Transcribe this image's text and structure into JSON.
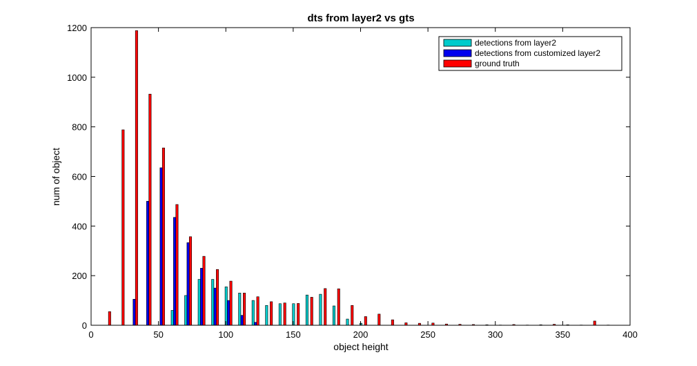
{
  "chart_data": {
    "type": "bar",
    "title": "dts from layer2 vs gts",
    "xlabel": "object height",
    "ylabel": "num of object",
    "xlim": [
      0,
      400
    ],
    "ylim": [
      0,
      1200
    ],
    "xticks": [
      0,
      50,
      100,
      150,
      200,
      250,
      300,
      350,
      400
    ],
    "yticks": [
      0,
      200,
      400,
      600,
      800,
      1000,
      1200
    ],
    "grid": false,
    "legend_position": "top-right",
    "bin_centers": [
      12,
      22,
      32,
      42,
      52,
      62,
      72,
      82,
      92,
      102,
      112,
      122,
      132,
      142,
      152,
      162,
      172,
      182,
      192,
      202,
      212,
      222,
      232,
      242,
      252,
      262,
      272,
      282,
      292,
      302,
      312,
      322,
      332,
      342,
      352,
      362,
      372,
      382,
      392
    ],
    "series": [
      {
        "name": "detections from layer2",
        "color": "#00cccc",
        "values": [
          0,
          0,
          0,
          0,
          0,
          60,
          120,
          185,
          185,
          155,
          130,
          100,
          80,
          87,
          87,
          122,
          125,
          78,
          25,
          8,
          0,
          0,
          0,
          0,
          0,
          0,
          0,
          0,
          0,
          0,
          0,
          0,
          0,
          0,
          0,
          0,
          0,
          0,
          0
        ]
      },
      {
        "name": "detections from customized layer2",
        "color": "#0000ee",
        "values": [
          0,
          0,
          105,
          500,
          635,
          435,
          333,
          230,
          150,
          100,
          40,
          12,
          0,
          0,
          0,
          0,
          0,
          0,
          0,
          0,
          0,
          0,
          0,
          0,
          0,
          0,
          0,
          0,
          0,
          0,
          0,
          0,
          0,
          0,
          0,
          0,
          0,
          0,
          0
        ]
      },
      {
        "name": "ground truth",
        "color": "#ff0000",
        "values": [
          55,
          788,
          1188,
          932,
          715,
          487,
          357,
          278,
          225,
          178,
          130,
          115,
          95,
          90,
          88,
          113,
          148,
          147,
          80,
          35,
          45,
          22,
          10,
          8,
          9,
          5,
          4,
          3,
          2,
          1,
          3,
          1,
          2,
          4,
          2,
          1,
          17,
          1,
          0
        ]
      }
    ]
  }
}
